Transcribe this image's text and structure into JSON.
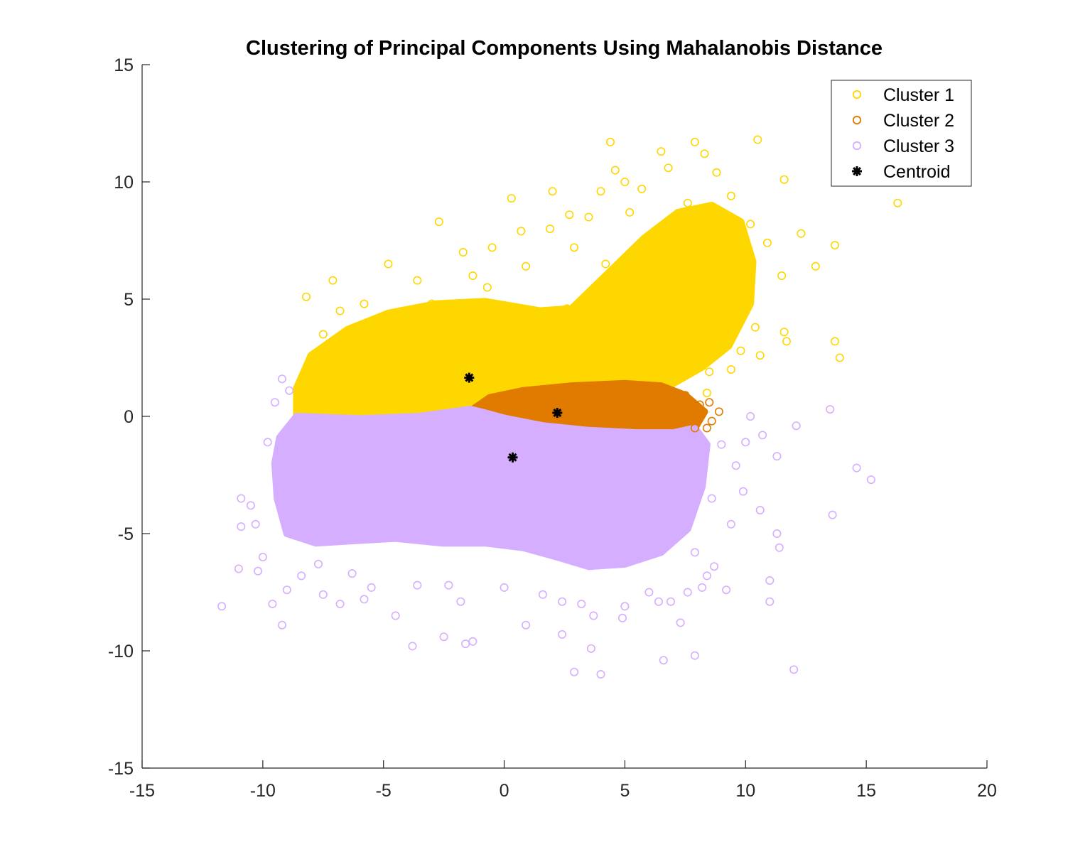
{
  "chart_data": {
    "type": "scatter",
    "title": "Clustering of Principal Components Using Mahalanobis Distance",
    "xlabel": "",
    "ylabel": "",
    "xlim": [
      -15,
      20
    ],
    "ylim": [
      -15,
      15
    ],
    "xticks": [
      -15,
      -10,
      -5,
      0,
      5,
      10,
      15,
      20
    ],
    "yticks": [
      -15,
      -10,
      -5,
      0,
      5,
      10,
      15
    ],
    "grid": false,
    "legend_position": "top-right",
    "series": [
      {
        "name": "Cluster 1",
        "color": "#FFD700",
        "marker": "circle-open",
        "points": [
          [
            -8.2,
            5.1
          ],
          [
            -7.1,
            5.8
          ],
          [
            -5.8,
            4.8
          ],
          [
            -4.8,
            6.5
          ],
          [
            -2.7,
            8.3
          ],
          [
            -1.7,
            7.0
          ],
          [
            -0.5,
            7.2
          ],
          [
            0.3,
            9.3
          ],
          [
            0.7,
            7.9
          ],
          [
            2.0,
            9.6
          ],
          [
            2.7,
            8.6
          ],
          [
            1.9,
            8.0
          ],
          [
            3.5,
            8.5
          ],
          [
            4.4,
            11.7
          ],
          [
            4.6,
            10.5
          ],
          [
            4.0,
            9.6
          ],
          [
            5.0,
            10.0
          ],
          [
            5.7,
            9.7
          ],
          [
            6.5,
            11.3
          ],
          [
            6.8,
            10.6
          ],
          [
            7.9,
            11.7
          ],
          [
            8.3,
            11.2
          ],
          [
            10.5,
            11.8
          ],
          [
            8.8,
            10.4
          ],
          [
            11.6,
            10.1
          ],
          [
            16.3,
            9.1
          ],
          [
            13.7,
            7.3
          ],
          [
            12.9,
            6.4
          ],
          [
            12.3,
            7.8
          ],
          [
            11.5,
            6.0
          ],
          [
            11.6,
            3.6
          ],
          [
            11.7,
            3.2
          ],
          [
            13.7,
            3.2
          ],
          [
            13.9,
            2.5
          ],
          [
            10.6,
            2.6
          ],
          [
            9.4,
            2.0
          ],
          [
            8.5,
            1.9
          ],
          [
            8.4,
            1.0
          ],
          [
            8.5,
            4.6
          ],
          [
            7.4,
            5.9
          ],
          [
            6.8,
            6.8
          ],
          [
            6.0,
            7.5
          ],
          [
            5.5,
            4.8
          ],
          [
            4.2,
            6.5
          ],
          [
            3.7,
            5.4
          ],
          [
            2.6,
            4.6
          ],
          [
            1.8,
            4.2
          ],
          [
            -1.3,
            6.0
          ],
          [
            -3.6,
            5.8
          ],
          [
            -6.8,
            4.5
          ],
          [
            -7.5,
            3.5
          ],
          [
            -8.1,
            2.2
          ],
          [
            -8.4,
            1.2
          ],
          [
            -7.8,
            0.6
          ],
          [
            -6.5,
            2.8
          ],
          [
            -3.0,
            4.8
          ],
          [
            -0.7,
            5.5
          ],
          [
            0.9,
            6.4
          ],
          [
            2.9,
            7.2
          ],
          [
            5.2,
            8.7
          ],
          [
            6.6,
            8.0
          ],
          [
            7.6,
            9.1
          ],
          [
            9.4,
            9.4
          ],
          [
            10.2,
            8.2
          ],
          [
            10.9,
            7.4
          ],
          [
            9.9,
            5.2
          ],
          [
            10.4,
            3.8
          ],
          [
            9.8,
            2.8
          ],
          [
            9.0,
            4.3
          ],
          [
            7.2,
            4.1
          ],
          [
            4.5,
            3.0
          ],
          [
            0.6,
            3.5
          ],
          [
            -2.2,
            3.6
          ],
          [
            -4.8,
            3.0
          ],
          [
            -6.2,
            1.5
          ],
          [
            3.8,
            5.2
          ],
          [
            6.1,
            6.2
          ],
          [
            8.2,
            7.0
          ],
          [
            9.1,
            6.3
          ],
          [
            6.8,
            2.0
          ],
          [
            -1.0,
            1.3
          ],
          [
            -3.5,
            2.2
          ],
          [
            1.8,
            2.0
          ],
          [
            4.8,
            1.9
          ]
        ],
        "regions": [
          [
            [
              -8.6,
              0.0
            ],
            [
              -8.6,
              1.2
            ],
            [
              -8.0,
              2.6
            ],
            [
              -6.5,
              3.7
            ],
            [
              -4.8,
              4.4
            ],
            [
              -2.8,
              4.8
            ],
            [
              -0.8,
              4.9
            ],
            [
              1.5,
              4.5
            ],
            [
              2.8,
              4.6
            ],
            [
              4.2,
              6.0
            ],
            [
              5.8,
              7.6
            ],
            [
              7.2,
              8.7
            ],
            [
              8.6,
              9.0
            ],
            [
              9.8,
              8.3
            ],
            [
              10.3,
              6.6
            ],
            [
              10.2,
              4.8
            ],
            [
              9.3,
              3.0
            ],
            [
              8.2,
              2.1
            ],
            [
              7.0,
              1.4
            ],
            [
              5.8,
              1.3
            ],
            [
              3.5,
              1.3
            ],
            [
              1.5,
              1.0
            ],
            [
              -0.3,
              0.6
            ],
            [
              -1.4,
              0.3
            ],
            [
              -3.5,
              0.0
            ],
            [
              -6.0,
              -0.1
            ],
            [
              -8.0,
              -0.1
            ]
          ]
        ]
      },
      {
        "name": "Cluster 2",
        "color": "#E07B00",
        "marker": "circle-open",
        "points": [
          [
            8.9,
            0.2
          ],
          [
            8.4,
            -0.5
          ],
          [
            8.5,
            0.6
          ],
          [
            8.1,
            0.5
          ],
          [
            7.6,
            -0.2
          ],
          [
            8.6,
            -0.2
          ],
          [
            7.5,
            0.9
          ],
          [
            7.9,
            -0.5
          ],
          [
            8.2,
            0.1
          ],
          [
            7.2,
            -0.3
          ]
        ],
        "regions": [
          [
            [
              -1.3,
              0.3
            ],
            [
              -0.6,
              0.8
            ],
            [
              0.8,
              1.1
            ],
            [
              2.8,
              1.3
            ],
            [
              5.0,
              1.4
            ],
            [
              6.5,
              1.3
            ],
            [
              7.5,
              0.9
            ],
            [
              8.3,
              0.2
            ],
            [
              7.9,
              -0.5
            ],
            [
              7.0,
              -0.7
            ],
            [
              5.5,
              -0.7
            ],
            [
              3.5,
              -0.6
            ],
            [
              1.6,
              -0.4
            ],
            [
              0.1,
              -0.1
            ],
            [
              -1.0,
              0.2
            ]
          ]
        ]
      },
      {
        "name": "Cluster 3",
        "color": "#D6AEFF",
        "marker": "circle-open",
        "points": [
          [
            -11.7,
            -8.1
          ],
          [
            -10.9,
            -4.7
          ],
          [
            -11.0,
            -6.5
          ],
          [
            -10.2,
            -6.6
          ],
          [
            -10.0,
            -6.0
          ],
          [
            -9.2,
            -8.9
          ],
          [
            -9.6,
            -8.0
          ],
          [
            -9.0,
            -7.4
          ],
          [
            -8.4,
            -6.8
          ],
          [
            -7.5,
            -7.6
          ],
          [
            -6.8,
            -8.0
          ],
          [
            -5.8,
            -7.8
          ],
          [
            -5.5,
            -7.3
          ],
          [
            -4.5,
            -8.5
          ],
          [
            -3.8,
            -9.8
          ],
          [
            -2.5,
            -9.4
          ],
          [
            -1.6,
            -9.7
          ],
          [
            -1.3,
            -9.6
          ],
          [
            0.9,
            -8.9
          ],
          [
            2.4,
            -9.3
          ],
          [
            2.9,
            -10.9
          ],
          [
            3.6,
            -9.9
          ],
          [
            4.0,
            -11.0
          ],
          [
            6.6,
            -10.4
          ],
          [
            7.9,
            -10.2
          ],
          [
            12.0,
            -10.8
          ],
          [
            11.0,
            -7.9
          ],
          [
            11.0,
            -7.0
          ],
          [
            11.4,
            -5.6
          ],
          [
            11.3,
            -5.0
          ],
          [
            13.6,
            -4.2
          ],
          [
            14.6,
            -2.2
          ],
          [
            15.2,
            -2.7
          ],
          [
            13.5,
            0.3
          ],
          [
            12.1,
            -0.4
          ],
          [
            11.3,
            -1.7
          ],
          [
            10.6,
            -4.0
          ],
          [
            10.7,
            -0.8
          ],
          [
            9.9,
            -3.2
          ],
          [
            9.6,
            -2.1
          ],
          [
            9.4,
            -4.6
          ],
          [
            9.2,
            -7.4
          ],
          [
            8.7,
            -6.4
          ],
          [
            8.4,
            -6.8
          ],
          [
            8.2,
            -7.3
          ],
          [
            7.9,
            -5.8
          ],
          [
            7.6,
            -7.5
          ],
          [
            7.3,
            -8.8
          ],
          [
            6.9,
            -7.9
          ],
          [
            6.4,
            -7.9
          ],
          [
            -9.2,
            1.6
          ],
          [
            -9.5,
            0.6
          ],
          [
            -8.9,
            1.1
          ],
          [
            -9.8,
            -1.1
          ],
          [
            -10.5,
            -3.8
          ],
          [
            -10.9,
            -3.5
          ],
          [
            -10.3,
            -4.6
          ],
          [
            -3.6,
            -7.2
          ],
          [
            -1.8,
            -7.9
          ],
          [
            0.0,
            -7.3
          ],
          [
            1.6,
            -7.6
          ],
          [
            2.4,
            -7.9
          ],
          [
            3.2,
            -8.0
          ],
          [
            4.9,
            -8.6
          ],
          [
            5.0,
            -8.1
          ],
          [
            6.0,
            -7.5
          ],
          [
            3.7,
            -8.5
          ],
          [
            -2.3,
            -7.2
          ],
          [
            -6.3,
            -6.7
          ],
          [
            -7.7,
            -6.3
          ],
          [
            8.6,
            -3.5
          ],
          [
            9.0,
            -1.2
          ],
          [
            10.0,
            -1.1
          ],
          [
            10.2,
            0.0
          ]
        ],
        "regions": [
          [
            [
              -8.6,
              0.0
            ],
            [
              -6.0,
              -0.1
            ],
            [
              -3.5,
              0.0
            ],
            [
              -1.4,
              0.3
            ],
            [
              -1.0,
              0.2
            ],
            [
              0.1,
              -0.1
            ],
            [
              1.6,
              -0.4
            ],
            [
              3.5,
              -0.6
            ],
            [
              5.5,
              -0.7
            ],
            [
              7.0,
              -0.7
            ],
            [
              7.9,
              -0.5
            ],
            [
              8.4,
              -1.2
            ],
            [
              8.2,
              -3.0
            ],
            [
              7.6,
              -4.8
            ],
            [
              6.5,
              -5.8
            ],
            [
              5.0,
              -6.3
            ],
            [
              3.5,
              -6.4
            ],
            [
              2.2,
              -6.0
            ],
            [
              0.8,
              -5.6
            ],
            [
              -0.8,
              -5.4
            ],
            [
              -2.6,
              -5.4
            ],
            [
              -4.5,
              -5.2
            ],
            [
              -6.2,
              -5.3
            ],
            [
              -7.8,
              -5.4
            ],
            [
              -9.0,
              -5.0
            ],
            [
              -9.4,
              -3.5
            ],
            [
              -9.5,
              -2.0
            ],
            [
              -9.3,
              -0.9
            ]
          ]
        ]
      },
      {
        "name": "Centroid",
        "color": "#000000",
        "marker": "asterisk",
        "points": [
          [
            -1.45,
            1.65
          ],
          [
            2.2,
            0.15
          ],
          [
            0.35,
            -1.75
          ]
        ]
      }
    ]
  }
}
